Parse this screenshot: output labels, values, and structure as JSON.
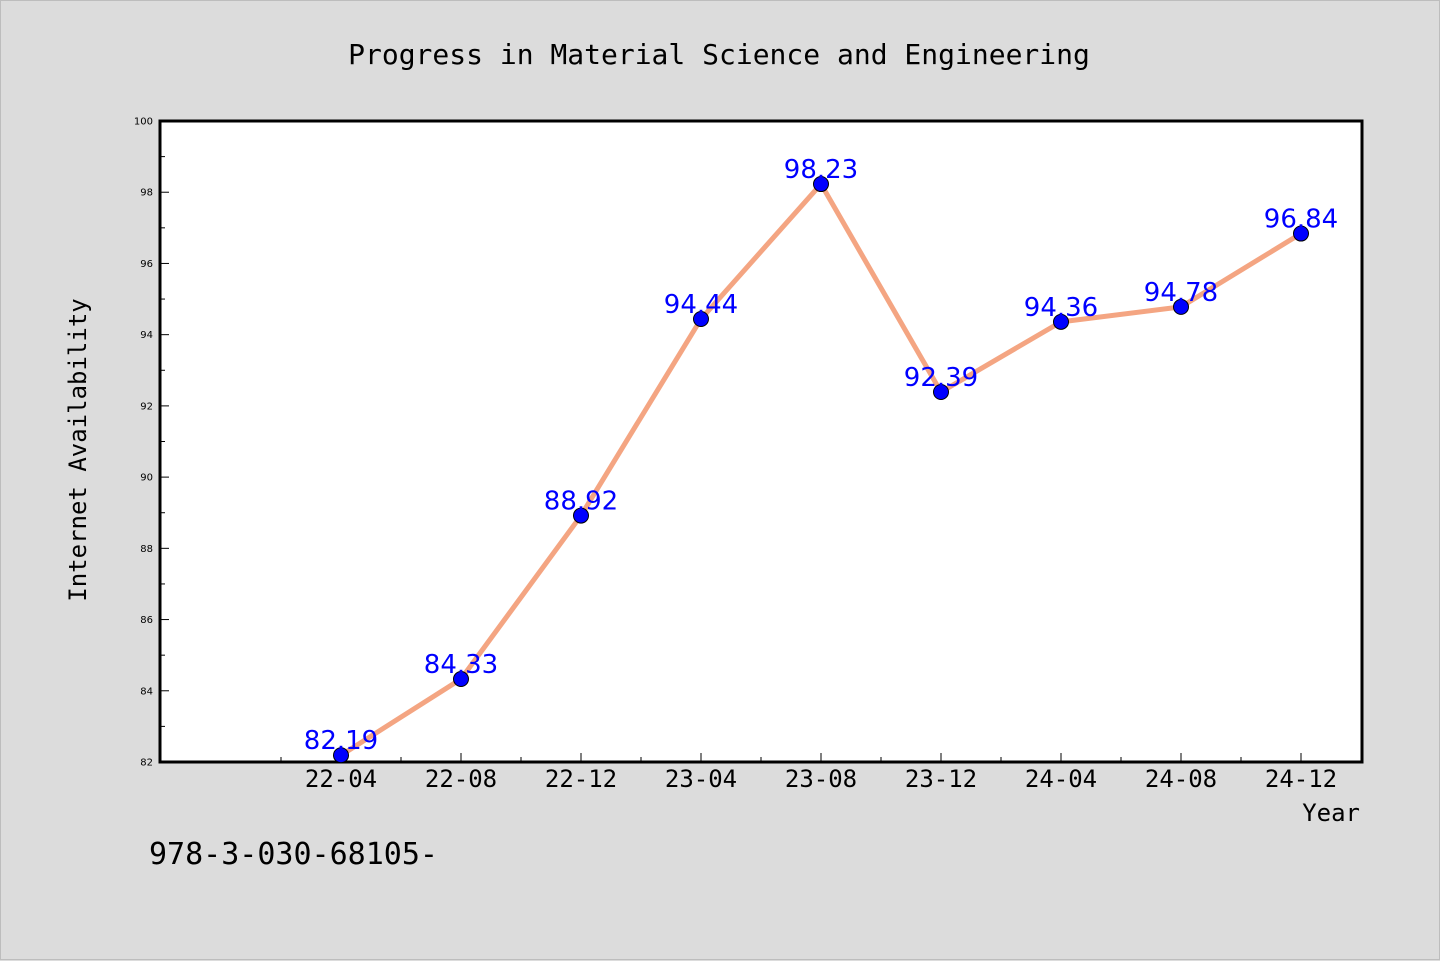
{
  "chart_data": {
    "type": "line",
    "title": "Progress in Material Science and Engineering",
    "xlabel": "Year",
    "ylabel": "Internet Availability",
    "categories": [
      "22-04",
      "22-08",
      "22-12",
      "23-04",
      "23-08",
      "23-12",
      "24-04",
      "24-08",
      "24-12"
    ],
    "series": [
      {
        "values": [
          82.19,
          84.33,
          88.92,
          94.44,
          98.23,
          92.39,
          94.36,
          94.78,
          96.84
        ],
        "line_color": "#f4a582",
        "marker_color": "#0000ff"
      }
    ],
    "data_labels": [
      "82.19",
      "84.33",
      "88.92",
      "94.44",
      "98.23",
      "92.39",
      "94.36",
      "94.78",
      "96.84"
    ],
    "ylim": [
      82,
      100
    ],
    "yticks": [
      82,
      84,
      86,
      88,
      90,
      92,
      94,
      96,
      98,
      100
    ],
    "ytick_labels": [
      "82",
      "84",
      "86",
      "88",
      "90",
      "92",
      "94",
      "96",
      "98",
      "100"
    ],
    "grid": false,
    "legend": "none"
  },
  "footer": {
    "text": "978-3-030-68105-"
  },
  "colors": {
    "background": "#dcdcdc",
    "plot_area": "#ffffff",
    "line": "#f4a582",
    "marker": "#0000ff",
    "data_label": "#0000ff"
  }
}
